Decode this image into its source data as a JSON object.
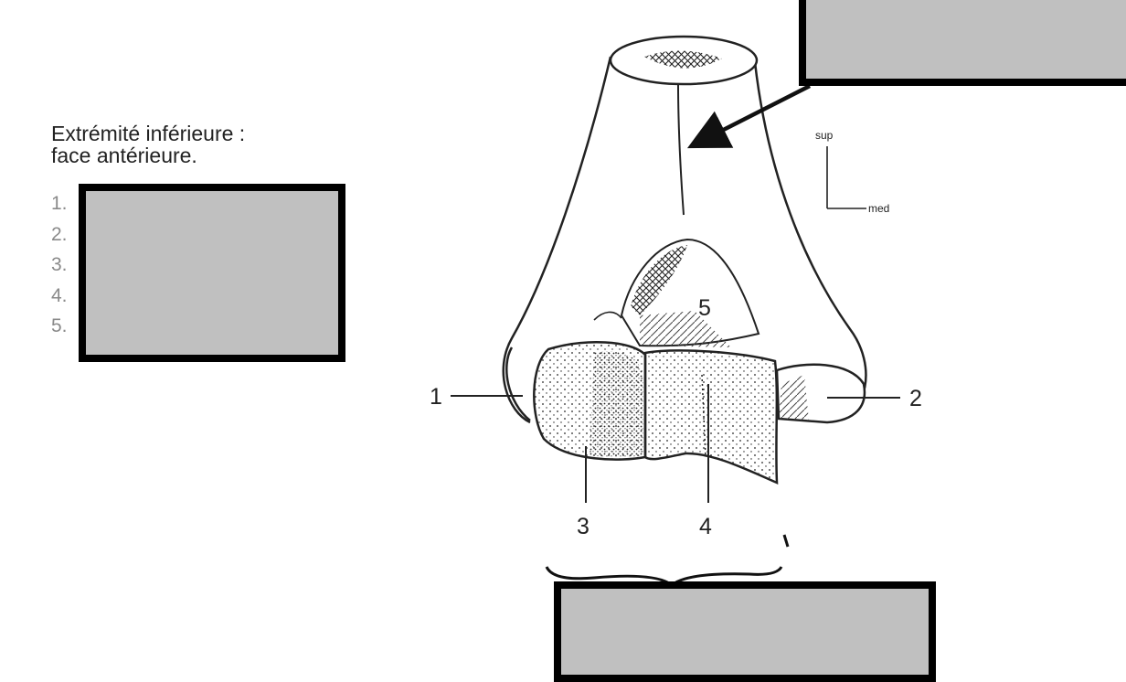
{
  "caption": {
    "line1": "Extrémité inférieure :",
    "line2": "face antérieure."
  },
  "legend": {
    "items": [
      "1.",
      "2.",
      "3.",
      "4.",
      "5."
    ]
  },
  "orientation": {
    "up": "sup",
    "side": "med"
  },
  "labels": {
    "l1": "1",
    "l2": "2",
    "l3": "3",
    "l4": "4",
    "l5": "5"
  },
  "masks": [
    "hidden-answer-top",
    "hidden-answer-legend",
    "hidden-answer-bottom"
  ],
  "colors": {
    "mask_fill": "#c0c0c0",
    "mask_border": "#000000",
    "ink": "#222222",
    "legend_numbers": "#8a8a8a"
  }
}
